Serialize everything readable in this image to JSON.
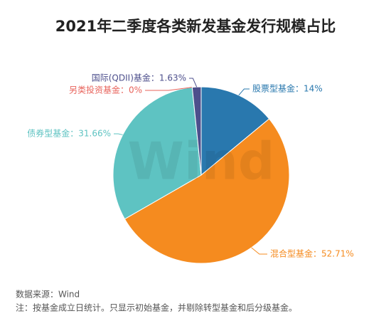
{
  "chart_data": {
    "type": "pie",
    "title": "2021年二季度各类新发基金发行规模占比",
    "values": [
      14,
      52.71,
      31.66,
      0,
      1.63
    ],
    "value_labels": [
      "股票型基金：14%",
      "混合型基金：52.71%",
      "债券型基金：31.66%",
      "另类投资基金：0%",
      "国际(QDII)基金：1.63%"
    ],
    "colors": [
      "#2978ae",
      "#f58b1f",
      "#5ec3c2",
      "#e8635b",
      "#4d4f8c"
    ],
    "watermark": "Wind",
    "source": "数据来源：Wind",
    "note": "注：按基金成立日统计。只显示初始基金，并剔除转型基金和后分级基金。"
  }
}
